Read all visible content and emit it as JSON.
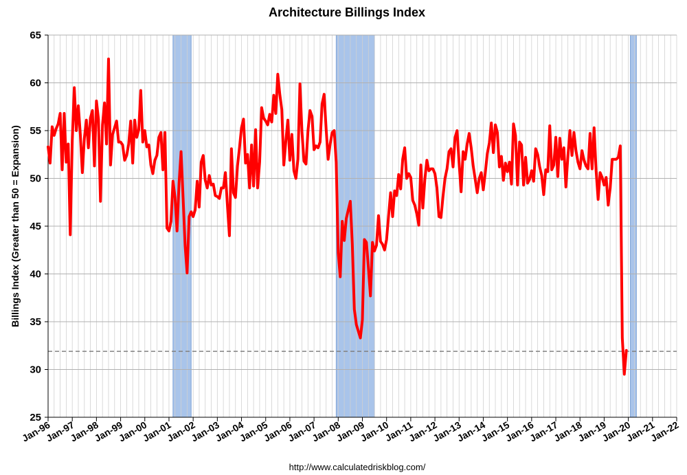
{
  "chart_data": {
    "type": "line",
    "title": "Architecture Billings Index",
    "ylabel": "Billings Index (Greater than 50 = Expansion)",
    "xlabel": "",
    "source": "http://www.calculatedriskblog.com/",
    "ylim": [
      25,
      65
    ],
    "yticks": [
      25,
      30,
      35,
      40,
      45,
      50,
      55,
      60,
      65
    ],
    "xlim": [
      "1996-01",
      "2022-01"
    ],
    "xtick_labels": [
      "Jan-96",
      "Jan-97",
      "Jan-98",
      "Jan-99",
      "Jan-00",
      "Jan-01",
      "Jan-02",
      "Jan-03",
      "Jan-04",
      "Jan-05",
      "Jan-06",
      "Jan-07",
      "Jan-08",
      "Jan-09",
      "Jan-10",
      "Jan-11",
      "Jan-12",
      "Jan-13",
      "Jan-14",
      "Jan-15",
      "Jan-16",
      "Jan-17",
      "Jan-18",
      "Jan-19",
      "Jan-20",
      "Jan-21",
      "Jan-22"
    ],
    "grid": true,
    "colors": {
      "line": "#ff0000",
      "recession": "#a9c4ea",
      "recession_edge": "#7fa3d6",
      "reference_line": "#808080",
      "grid": "#b0b0b0"
    },
    "reference_line": {
      "y": 31.9,
      "style": "dashed"
    },
    "recessions": [
      {
        "start": "2001-03",
        "end": "2001-11"
      },
      {
        "start": "2007-12",
        "end": "2009-06"
      },
      {
        "start": "2020-02",
        "end": "2020-04"
      }
    ],
    "series": [
      {
        "start": "1996-01",
        "frequency": "monthly",
        "values": [
          53.3,
          51.6,
          55.4,
          54.5,
          55.2,
          55.7,
          56.8,
          50.9,
          56.8,
          51.7,
          53.6,
          44.1,
          54.0,
          59.5,
          55.0,
          57.6,
          54.6,
          50.6,
          54.2,
          56.1,
          53.2,
          56.3,
          57.1,
          51.3,
          58.1,
          56.2,
          47.6,
          55.6,
          57.9,
          53.6,
          62.5,
          51.4,
          54.6,
          55.3,
          56.0,
          53.8,
          53.8,
          53.5,
          51.9,
          52.4,
          53.6,
          56.0,
          51.6,
          56.1,
          54.3,
          55.1,
          59.2,
          53.8,
          55.0,
          53.3,
          53.5,
          51.4,
          50.5,
          51.9,
          52.4,
          54.3,
          54.8,
          50.9,
          54.8,
          44.8,
          44.5,
          45.5,
          49.7,
          48.0,
          44.5,
          49.5,
          52.8,
          48.0,
          43.0,
          40.1,
          46.0,
          46.5,
          46.0,
          46.7,
          49.7,
          47.0,
          51.7,
          52.4,
          49.8,
          49.0,
          50.3,
          49.3,
          49.4,
          48.2,
          48.1,
          47.9,
          49.0,
          49.0,
          50.6,
          47.2,
          44.0,
          53.1,
          48.5,
          48.0,
          51.3,
          53.2,
          55.3,
          56.2,
          51.6,
          52.5,
          49.0,
          53.5,
          49.2,
          55.1,
          49.0,
          51.7,
          57.4,
          56.3,
          56.0,
          55.6,
          56.7,
          55.9,
          58.7,
          56.8,
          60.9,
          58.8,
          57.2,
          51.4,
          53.9,
          56.1,
          51.9,
          54.6,
          50.8,
          50.0,
          52.0,
          59.9,
          54.9,
          51.8,
          51.5,
          55.0,
          57.1,
          56.5,
          53.0,
          53.4,
          53.2,
          53.8,
          57.8,
          58.8,
          55.2,
          52.0,
          53.6,
          54.8,
          55.0,
          51.7,
          42.2,
          39.7,
          45.5,
          43.5,
          45.8,
          46.7,
          47.6,
          43.1,
          36.3,
          34.7,
          34.0,
          33.3,
          35.2,
          43.6,
          43.3,
          40.6,
          37.7,
          43.3,
          42.4,
          43.0,
          46.1,
          43.4,
          43.1,
          42.5,
          43.6,
          46.1,
          48.5,
          46.0,
          48.7,
          48.2,
          50.4,
          48.9,
          52.0,
          53.2,
          50.0,
          50.5,
          50.1,
          47.7,
          47.2,
          46.3,
          45.1,
          51.4,
          46.9,
          49.9,
          51.9,
          50.8,
          51.0,
          51.0,
          50.5,
          49.0,
          46.0,
          45.9,
          48.1,
          50.0,
          51.0,
          52.8,
          53.1,
          51.2,
          54.3,
          55.0,
          51.6,
          48.6,
          52.8,
          52.0,
          53.6,
          54.7,
          53.2,
          51.3,
          49.9,
          48.5,
          50.0,
          50.6,
          48.8,
          50.6,
          52.6,
          53.7,
          55.8,
          52.7,
          55.6,
          54.8,
          51.2,
          52.3,
          49.8,
          51.6,
          50.7,
          51.7,
          49.4,
          55.7,
          54.5,
          49.3,
          53.8,
          53.5,
          49.3,
          52.2,
          49.5,
          49.9,
          50.8,
          49.7,
          53.1,
          52.5,
          51.2,
          50.3,
          48.3,
          50.9,
          50.7,
          55.5,
          50.9,
          51.4,
          54.3,
          50.2,
          54.2,
          52.0,
          53.2,
          49.1,
          52.3,
          55.0,
          52.4,
          54.8,
          52.9,
          51.7,
          51.0,
          52.9,
          51.9,
          51.3,
          51.0,
          54.7,
          51.0,
          55.3,
          50.8,
          47.8,
          50.6,
          50.1,
          49.3,
          50.1,
          47.2,
          49.0,
          52.0,
          52.0,
          52.0,
          52.2,
          53.4,
          33.3,
          29.5,
          32.0
        ]
      }
    ]
  }
}
